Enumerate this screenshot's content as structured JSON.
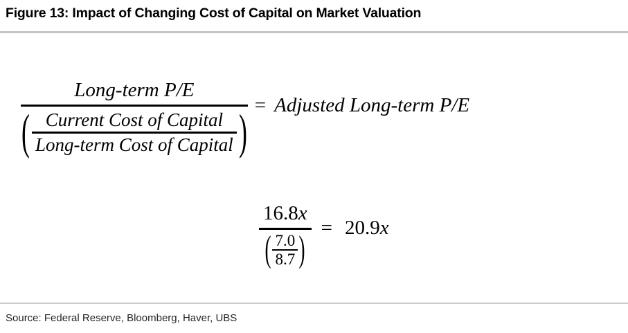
{
  "figure": {
    "title": "Figure 13: Impact of Changing Cost of Capital on Market Valuation",
    "source": "Source: Federal Reserve, Bloomberg, Haver, UBS"
  },
  "formula": {
    "numerator": "Long-term P/E",
    "denominator_top": "Current Cost of Capital",
    "denominator_bottom": "Long-term Cost of Capital",
    "equals": "=",
    "result": "Adjusted Long-term P/E",
    "paren_open": "(",
    "paren_close": ")"
  },
  "example": {
    "numerator_value": "16.8",
    "numerator_unit": "x",
    "denominator_top": "7.0",
    "denominator_bottom": "8.7",
    "equals": "=",
    "result_value": "20.9",
    "result_unit": "x",
    "paren_open": "(",
    "paren_close": ")"
  },
  "colors": {
    "title_rule": "#c5c5c5",
    "source_rule": "#cbcbcb",
    "text": "#000000",
    "source_text": "#262626"
  }
}
